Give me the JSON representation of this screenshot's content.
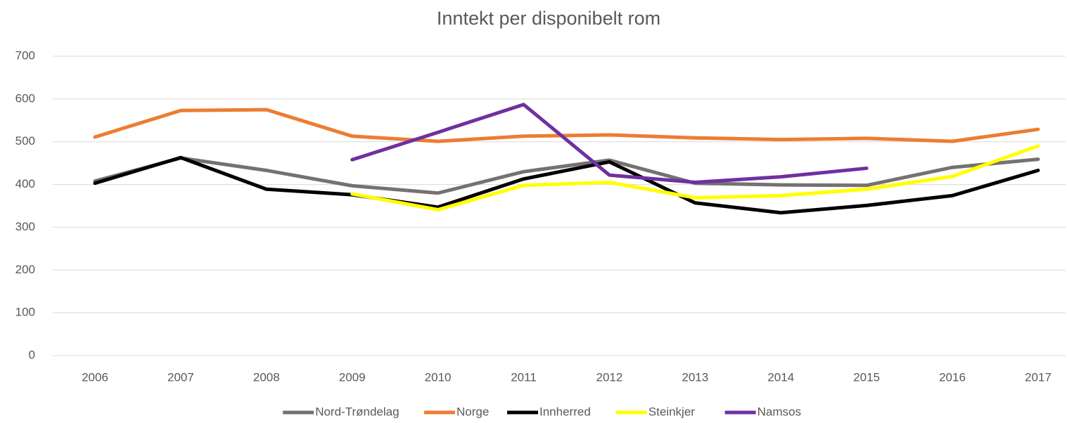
{
  "chart_data": {
    "type": "line",
    "title": "Inntekt per disponibelt rom",
    "categories": [
      "2006",
      "2007",
      "2008",
      "2009",
      "2010",
      "2011",
      "2012",
      "2013",
      "2014",
      "2015",
      "2016",
      "2017"
    ],
    "series": [
      {
        "name": "Nord-Trøndelag",
        "color": "#767171",
        "values": [
          408,
          462,
          433,
          397,
          380,
          430,
          457,
          403,
          399,
          398,
          440,
          459
        ]
      },
      {
        "name": "Norge",
        "color": "#ed7d31",
        "values": [
          511,
          573,
          575,
          513,
          501,
          513,
          516,
          509,
          505,
          508,
          501,
          529
        ]
      },
      {
        "name": "Innherred",
        "color": "#000000",
        "values": [
          403,
          463,
          389,
          376,
          347,
          413,
          453,
          357,
          334,
          351,
          374,
          433
        ]
      },
      {
        "name": "Steinkjer",
        "color": "#ffff00",
        "values": [
          null,
          null,
          null,
          378,
          341,
          398,
          405,
          369,
          374,
          389,
          419,
          490
        ]
      },
      {
        "name": "Namsos",
        "color": "#7030a0",
        "values": [
          null,
          null,
          null,
          458,
          522,
          587,
          422,
          405,
          418,
          438,
          null,
          null
        ]
      }
    ],
    "ylim": [
      0,
      700
    ],
    "yticks": [
      0,
      100,
      200,
      300,
      400,
      500,
      600,
      700
    ],
    "grid": true,
    "legend": "bottom"
  }
}
